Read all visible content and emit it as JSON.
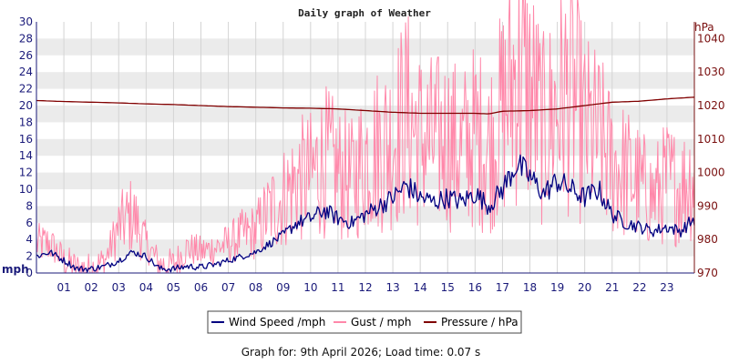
{
  "chart_data": {
    "type": "line",
    "title": "Daily graph of Weather",
    "x_tick_labels": [
      "01",
      "02",
      "03",
      "04",
      "05",
      "06",
      "07",
      "08",
      "09",
      "10",
      "11",
      "12",
      "13",
      "14",
      "15",
      "16",
      "17",
      "18",
      "19",
      "20",
      "21",
      "22",
      "23"
    ],
    "x_range_hours": [
      0,
      24
    ],
    "y_left": {
      "unit_label": "mph",
      "range": [
        0,
        30
      ],
      "tick_labels": [
        "0",
        "2",
        "4",
        "6",
        "8",
        "10",
        "12",
        "14",
        "16",
        "18",
        "20",
        "22",
        "24",
        "26",
        "28",
        "30"
      ]
    },
    "y_right": {
      "unit_label": "hPa",
      "range": [
        970,
        1045
      ],
      "tick_labels": [
        "970",
        "980",
        "990",
        "1000",
        "1010",
        "1020",
        "1030",
        "1040"
      ]
    },
    "grid": true,
    "legend_placement": "bottom-center",
    "series": [
      {
        "name": "Wind Speed /mph",
        "axis": "left",
        "color": "#000080",
        "x": [
          0,
          0.5,
          1,
          1.5,
          2,
          2.5,
          3,
          3.5,
          4,
          4.5,
          5,
          5.5,
          6,
          6.5,
          7,
          7.5,
          8,
          8.5,
          9,
          9.5,
          10,
          10.5,
          11,
          11.5,
          12,
          12.5,
          13,
          13.5,
          14,
          14.5,
          15,
          15.5,
          16,
          16.5,
          17,
          17.5,
          18,
          18.5,
          19,
          19.5,
          20,
          20.5,
          21,
          21.5,
          22,
          22.5,
          23,
          23.5,
          24
        ],
        "values": [
          2,
          2.5,
          1.5,
          0.5,
          0.5,
          0.8,
          1.5,
          2.5,
          2.0,
          0.5,
          0.5,
          0.8,
          0.7,
          1.0,
          1.5,
          2.0,
          2.5,
          3.5,
          4.5,
          6.0,
          6.5,
          7.5,
          6.5,
          6.0,
          7.0,
          8.0,
          9.0,
          10.5,
          9.0,
          8.5,
          9.0,
          8.5,
          9.5,
          8.0,
          10.0,
          13.0,
          11.5,
          9.5,
          11.0,
          10.0,
          9.0,
          10.0,
          7.0,
          6.0,
          5.5,
          5.0,
          5.5,
          5.0,
          6.5
        ]
      },
      {
        "name": "Gust / mph",
        "axis": "left",
        "color": "#ff88aa",
        "x": [
          0,
          0.5,
          1,
          1.5,
          2,
          2.5,
          3,
          3.5,
          4,
          4.5,
          5,
          5.5,
          6,
          6.5,
          7,
          7.5,
          8,
          8.5,
          9,
          9.5,
          10,
          10.5,
          11,
          11.5,
          12,
          12.5,
          13,
          13.5,
          14,
          14.5,
          15,
          15.5,
          16,
          16.5,
          17,
          17.5,
          18,
          18.5,
          19,
          19.5,
          20,
          20.5,
          21,
          21.5,
          22,
          22.5,
          23,
          23.5,
          24
        ],
        "values": [
          3.5,
          3.5,
          1.5,
          0.5,
          0.5,
          1.5,
          5.5,
          7.0,
          3.5,
          1.0,
          1.0,
          3.0,
          2.5,
          3.0,
          3.5,
          4.5,
          5.0,
          7.5,
          9.0,
          11.0,
          11.5,
          13.5,
          12.0,
          11.0,
          14.0,
          15.0,
          16.0,
          19.0,
          16.0,
          15.5,
          16.0,
          14.5,
          16.5,
          15.0,
          19.0,
          24.0,
          22.0,
          17.0,
          20.0,
          22.0,
          17.0,
          16.0,
          13.0,
          12.0,
          10.5,
          9.0,
          11.0,
          10.0,
          12.0
        ]
      },
      {
        "name": "Pressure / hPa",
        "axis": "right",
        "color": "#800000",
        "x": [
          0,
          1,
          2,
          3,
          4,
          5,
          6,
          7,
          8,
          9,
          10,
          11,
          12,
          13,
          14,
          15,
          16,
          16.5,
          17,
          18,
          19,
          20,
          21,
          22,
          23,
          24
        ],
        "values": [
          1021.5,
          1021.2,
          1021.0,
          1020.8,
          1020.5,
          1020.3,
          1020.0,
          1019.7,
          1019.5,
          1019.3,
          1019.2,
          1019.0,
          1018.5,
          1018.0,
          1017.7,
          1017.7,
          1017.7,
          1017.5,
          1018.3,
          1018.5,
          1019.0,
          1020.0,
          1021.0,
          1021.3,
          1022.0,
          1022.5
        ]
      }
    ],
    "footer": "Graph for: 9th April 2026; Load time: 0.07 s"
  }
}
